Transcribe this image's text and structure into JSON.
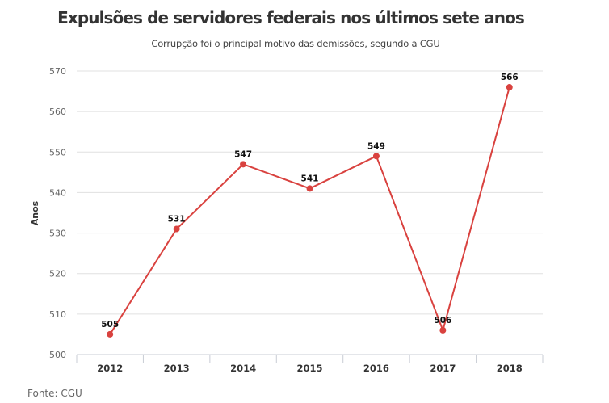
{
  "header": {
    "title": "Expulsões de servidores federais nos últimos sete anos",
    "subtitle": "Corrupção foi o principal motivo das demissões, segundo a CGU"
  },
  "footer": {
    "source": "Fonte: CGU"
  },
  "colors": {
    "series": "#d9423f",
    "grid": "#e0e0e0",
    "axis": "#c8ccd4"
  },
  "chart_data": {
    "type": "line",
    "title": "Expulsões de servidores federais nos últimos sete anos",
    "subtitle": "Corrupção foi o principal motivo das demissões, segundo a CGU",
    "xlabel": "",
    "ylabel": "Anos",
    "categories": [
      "2012",
      "2013",
      "2014",
      "2015",
      "2016",
      "2017",
      "2018"
    ],
    "values": [
      505,
      531,
      547,
      541,
      549,
      506,
      566
    ],
    "data_labels": [
      "505",
      "531",
      "547",
      "541",
      "549",
      "506",
      "566"
    ],
    "ylim": [
      500,
      570
    ],
    "yticks": [
      "500",
      "510",
      "520",
      "530",
      "540",
      "550",
      "560",
      "570"
    ],
    "grid": true,
    "legend": "none"
  }
}
